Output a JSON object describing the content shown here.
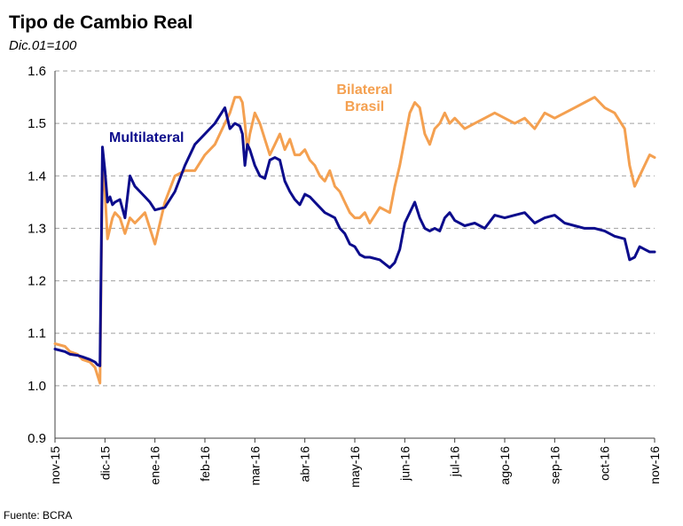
{
  "title": "Tipo de Cambio Real",
  "subtitle": "Dic.01=100",
  "source": "Fuente: BCRA",
  "colors": {
    "multilateral": "#0c0c8c",
    "bilateral": "#f4a050",
    "grid": "#a0a0a0",
    "axis": "#404040"
  },
  "chart_data": {
    "type": "line",
    "title": "Tipo de Cambio Real",
    "subtitle": "Dic.01=100",
    "ylim": [
      0.9,
      1.6
    ],
    "yticks": [
      "0.9",
      "1.0",
      "1.1",
      "1.2",
      "1.3",
      "1.4",
      "1.5",
      "1.6"
    ],
    "xlim": [
      0,
      12
    ],
    "xticks": [
      "nov-15",
      "dic-15",
      "ene-16",
      "feb-16",
      "mar-16",
      "abr-16",
      "may-16",
      "jun-16",
      "jul-16",
      "ago-16",
      "sep-16",
      "oct-16",
      "nov-16"
    ],
    "grid": "horizontal dashed",
    "series": [
      {
        "name": "Multilateral",
        "x": [
          0,
          0.2,
          0.3,
          0.45,
          0.55,
          0.7,
          0.8,
          0.85,
          0.9,
          0.95,
          1.0,
          1.05,
          1.1,
          1.15,
          1.2,
          1.3,
          1.4,
          1.5,
          1.6,
          1.7,
          1.8,
          1.9,
          2.0,
          2.2,
          2.4,
          2.6,
          2.8,
          3.0,
          3.2,
          3.4,
          3.5,
          3.6,
          3.7,
          3.75,
          3.8,
          3.85,
          3.9,
          4.0,
          4.1,
          4.2,
          4.3,
          4.4,
          4.5,
          4.6,
          4.7,
          4.8,
          4.9,
          5.0,
          5.1,
          5.2,
          5.3,
          5.4,
          5.5,
          5.6,
          5.7,
          5.8,
          5.9,
          6.0,
          6.1,
          6.2,
          6.3,
          6.5,
          6.7,
          6.8,
          6.9,
          7.0,
          7.1,
          7.2,
          7.3,
          7.4,
          7.5,
          7.6,
          7.7,
          7.8,
          7.9,
          8.0,
          8.2,
          8.4,
          8.6,
          8.8,
          9.0,
          9.2,
          9.4,
          9.6,
          9.8,
          10.0,
          10.2,
          10.4,
          10.6,
          10.8,
          11.0,
          11.2,
          11.4,
          11.5,
          11.6,
          11.7,
          11.8,
          11.9,
          12.0
        ],
        "values": [
          1.07,
          1.065,
          1.06,
          1.058,
          1.055,
          1.05,
          1.045,
          1.04,
          1.038,
          1.455,
          1.41,
          1.35,
          1.36,
          1.345,
          1.35,
          1.355,
          1.32,
          1.4,
          1.38,
          1.37,
          1.36,
          1.35,
          1.335,
          1.34,
          1.37,
          1.42,
          1.46,
          1.48,
          1.5,
          1.53,
          1.49,
          1.5,
          1.495,
          1.48,
          1.42,
          1.46,
          1.45,
          1.42,
          1.4,
          1.395,
          1.43,
          1.435,
          1.43,
          1.39,
          1.37,
          1.355,
          1.345,
          1.365,
          1.36,
          1.35,
          1.34,
          1.33,
          1.325,
          1.32,
          1.3,
          1.29,
          1.27,
          1.265,
          1.25,
          1.245,
          1.245,
          1.24,
          1.225,
          1.235,
          1.26,
          1.31,
          1.33,
          1.35,
          1.32,
          1.3,
          1.295,
          1.3,
          1.295,
          1.32,
          1.33,
          1.315,
          1.305,
          1.31,
          1.3,
          1.325,
          1.32,
          1.325,
          1.33,
          1.31,
          1.32,
          1.325,
          1.31,
          1.305,
          1.3,
          1.3,
          1.295,
          1.285,
          1.28,
          1.24,
          1.245,
          1.265,
          1.26,
          1.255,
          1.255
        ]
      },
      {
        "name": "Bilateral Brasil",
        "x": [
          0,
          0.2,
          0.3,
          0.45,
          0.55,
          0.7,
          0.8,
          0.85,
          0.9,
          0.95,
          1.0,
          1.05,
          1.1,
          1.15,
          1.2,
          1.3,
          1.4,
          1.5,
          1.6,
          1.7,
          1.8,
          1.9,
          2.0,
          2.2,
          2.4,
          2.6,
          2.8,
          3.0,
          3.2,
          3.4,
          3.5,
          3.6,
          3.7,
          3.75,
          3.8,
          3.85,
          3.9,
          4.0,
          4.1,
          4.2,
          4.3,
          4.4,
          4.5,
          4.6,
          4.7,
          4.8,
          4.9,
          5.0,
          5.1,
          5.2,
          5.3,
          5.4,
          5.5,
          5.6,
          5.7,
          5.8,
          5.9,
          6.0,
          6.1,
          6.2,
          6.3,
          6.5,
          6.7,
          6.8,
          6.9,
          7.0,
          7.1,
          7.2,
          7.3,
          7.4,
          7.5,
          7.6,
          7.7,
          7.8,
          7.9,
          8.0,
          8.2,
          8.4,
          8.6,
          8.8,
          9.0,
          9.2,
          9.4,
          9.6,
          9.8,
          10.0,
          10.2,
          10.4,
          10.6,
          10.8,
          11.0,
          11.2,
          11.4,
          11.5,
          11.6,
          11.7,
          11.8,
          11.9,
          12.0
        ],
        "values": [
          1.08,
          1.075,
          1.065,
          1.06,
          1.05,
          1.045,
          1.035,
          1.02,
          1.005,
          1.42,
          1.37,
          1.28,
          1.3,
          1.32,
          1.33,
          1.32,
          1.29,
          1.32,
          1.31,
          1.32,
          1.33,
          1.3,
          1.27,
          1.35,
          1.4,
          1.41,
          1.41,
          1.44,
          1.46,
          1.5,
          1.52,
          1.55,
          1.55,
          1.54,
          1.5,
          1.45,
          1.48,
          1.52,
          1.5,
          1.47,
          1.44,
          1.46,
          1.48,
          1.45,
          1.47,
          1.44,
          1.44,
          1.45,
          1.43,
          1.42,
          1.4,
          1.39,
          1.41,
          1.38,
          1.37,
          1.35,
          1.33,
          1.32,
          1.32,
          1.33,
          1.31,
          1.34,
          1.33,
          1.38,
          1.42,
          1.47,
          1.52,
          1.54,
          1.53,
          1.48,
          1.46,
          1.49,
          1.5,
          1.52,
          1.5,
          1.51,
          1.49,
          1.5,
          1.51,
          1.52,
          1.51,
          1.5,
          1.51,
          1.49,
          1.52,
          1.51,
          1.52,
          1.53,
          1.54,
          1.55,
          1.53,
          1.52,
          1.49,
          1.42,
          1.38,
          1.4,
          1.42,
          1.44,
          1.435
        ]
      }
    ]
  }
}
